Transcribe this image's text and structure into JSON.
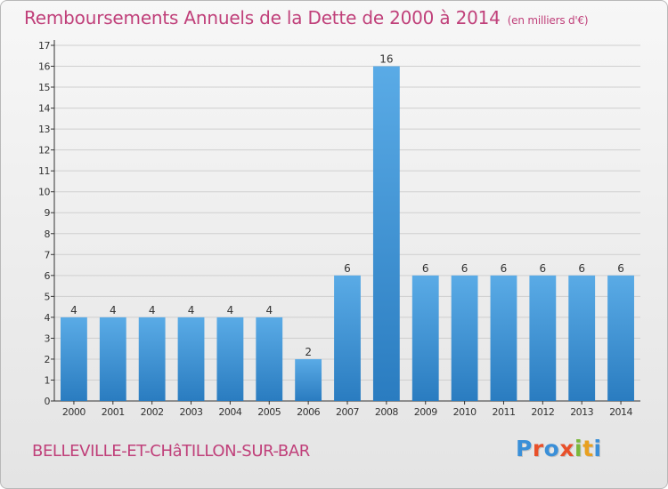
{
  "title": "Remboursements Annuels de la Dette de 2000 à 2014",
  "unit_note": "(en milliers d'€)",
  "commune": "BELLEVILLE-ET-CHâTILLON-SUR-BAR",
  "logo": {
    "text": "Proxiti",
    "letter_colors": [
      "#3a8fd8",
      "#e8502a",
      "#3a8fd8",
      "#e8502a",
      "#7ab83a",
      "#e8a020",
      "#3a8fd8"
    ]
  },
  "colors": {
    "title": "#c0407a",
    "bar_top": "#5aabe6",
    "bar_bottom": "#2a7cc0",
    "axis": "#333333",
    "grid": "#cfcfcf"
  },
  "chart_data": {
    "type": "bar",
    "categories": [
      "2000",
      "2001",
      "2002",
      "2003",
      "2004",
      "2005",
      "2006",
      "2007",
      "2008",
      "2009",
      "2010",
      "2011",
      "2012",
      "2013",
      "2014"
    ],
    "values": [
      4,
      4,
      4,
      4,
      4,
      4,
      2,
      6,
      16,
      6,
      6,
      6,
      6,
      6,
      6
    ],
    "ylim": [
      0,
      17
    ],
    "yticks": [
      0,
      1,
      2,
      3,
      4,
      5,
      6,
      7,
      8,
      9,
      10,
      11,
      12,
      13,
      14,
      15,
      16,
      17
    ],
    "grid": true,
    "legend": "none"
  }
}
